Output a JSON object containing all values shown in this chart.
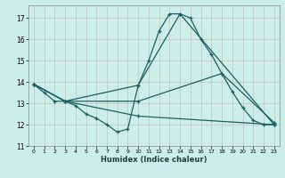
{
  "xlabel": "Humidex (Indice chaleur)",
  "bg_color": "#cceee8",
  "grid_color": "#b0b0b0",
  "line_color": "#1a6060",
  "xlim": [
    -0.5,
    23.5
  ],
  "ylim": [
    11,
    17.6
  ],
  "yticks": [
    11,
    12,
    13,
    14,
    15,
    16,
    17
  ],
  "xticks": [
    0,
    1,
    2,
    3,
    4,
    5,
    6,
    7,
    8,
    9,
    10,
    11,
    12,
    13,
    14,
    15,
    16,
    17,
    18,
    19,
    20,
    21,
    22,
    23
  ],
  "series": [
    {
      "x": [
        0,
        1,
        2,
        3,
        4,
        5,
        6,
        7,
        8,
        9,
        10,
        11,
        12,
        13,
        14,
        15,
        16,
        17,
        18,
        19,
        20,
        21,
        22,
        23
      ],
      "y": [
        13.9,
        13.5,
        13.1,
        13.1,
        12.9,
        12.5,
        12.3,
        12.0,
        11.65,
        11.8,
        13.85,
        15.0,
        16.4,
        17.2,
        17.2,
        17.0,
        16.0,
        15.3,
        14.4,
        13.55,
        12.8,
        12.2,
        12.0,
        12.0
      ]
    },
    {
      "x": [
        0,
        3,
        10,
        14,
        23
      ],
      "y": [
        13.9,
        13.1,
        13.85,
        17.2,
        12.0
      ]
    },
    {
      "x": [
        0,
        3,
        10,
        18,
        23
      ],
      "y": [
        13.9,
        13.1,
        13.1,
        14.4,
        12.1
      ]
    },
    {
      "x": [
        0,
        3,
        10,
        23
      ],
      "y": [
        13.9,
        13.1,
        12.4,
        12.0
      ]
    }
  ]
}
